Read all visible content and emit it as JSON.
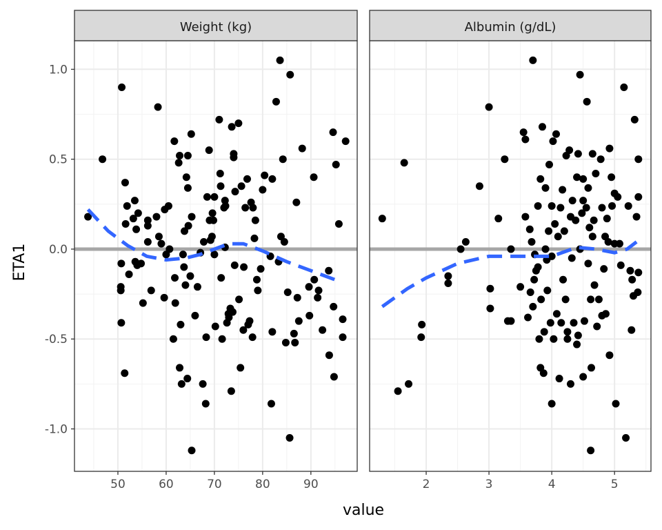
{
  "chart_data": {
    "type": "scatter",
    "ylabel": "ETA1",
    "xlabel": "value",
    "ylim": [
      -1.236,
      1.159
    ],
    "yticks": [
      "-1.0",
      "-0.5",
      "0.0",
      "0.5",
      "1.0"
    ],
    "ytick_values": [
      -1.0,
      -0.5,
      0.0,
      0.5,
      1.0
    ],
    "reference_line": {
      "y": 0,
      "color": "#A6A6A6"
    },
    "smooth_color": "#3366FF",
    "point_color": "#000000",
    "strip_fill": "#D9D9D9",
    "grid": true,
    "panels": [
      {
        "title": "Weight (kg)",
        "xlim": [
          41,
          99.6
        ],
        "xticks": [
          "50",
          "60",
          "70",
          "80",
          "90"
        ],
        "xtick_values": [
          50,
          60,
          70,
          80,
          90
        ],
        "points": [
          [
            43.8,
            0.18
          ],
          [
            46.8,
            0.5
          ],
          [
            50.8,
            0.9
          ],
          [
            58.3,
            0.79
          ],
          [
            50.7,
            -0.08
          ],
          [
            50.6,
            -0.21
          ],
          [
            50.6,
            -0.23
          ],
          [
            50.7,
            -0.41
          ],
          [
            51.4,
            -0.69
          ],
          [
            51.5,
            0.37
          ],
          [
            51.6,
            0.14
          ],
          [
            51.9,
            0.24
          ],
          [
            52.3,
            -0.14
          ],
          [
            53.2,
            0.17
          ],
          [
            53.5,
            0.27
          ],
          [
            53.6,
            -0.07
          ],
          [
            53.8,
            0.11
          ],
          [
            54.2,
            0.2
          ],
          [
            54.0,
            -0.09
          ],
          [
            54.8,
            -0.08
          ],
          [
            55.2,
            -0.3
          ],
          [
            56.2,
            0.13
          ],
          [
            56.2,
            0.16
          ],
          [
            56.2,
            0.04
          ],
          [
            56.9,
            -0.23
          ],
          [
            58.0,
            0.18
          ],
          [
            58.5,
            0.07
          ],
          [
            59.0,
            0.03
          ],
          [
            59.6,
            -0.27
          ],
          [
            59.7,
            0.22
          ],
          [
            60.0,
            -0.03
          ],
          [
            60.5,
            0.24
          ],
          [
            60.7,
            0.0
          ],
          [
            61.5,
            -0.5
          ],
          [
            61.7,
            0.6
          ],
          [
            61.8,
            -0.16
          ],
          [
            61.9,
            -0.3
          ],
          [
            62.6,
            0.48
          ],
          [
            62.8,
            0.52
          ],
          [
            62.8,
            -0.66
          ],
          [
            63.0,
            -0.42
          ],
          [
            63.2,
            -0.75
          ],
          [
            63.5,
            -0.03
          ],
          [
            63.7,
            -0.1
          ],
          [
            63.8,
            0.1
          ],
          [
            64.0,
            -0.2
          ],
          [
            64.2,
            0.4
          ],
          [
            64.4,
            -0.72
          ],
          [
            64.5,
            0.52
          ],
          [
            64.5,
            0.34
          ],
          [
            64.6,
            0.13
          ],
          [
            65.0,
            -0.15
          ],
          [
            65.2,
            0.64
          ],
          [
            65.3,
            0.18
          ],
          [
            65.3,
            -1.12
          ],
          [
            66.0,
            -0.37
          ],
          [
            66.5,
            -0.21
          ],
          [
            67.1,
            -0.02
          ],
          [
            67.6,
            -0.75
          ],
          [
            67.8,
            0.04
          ],
          [
            68.2,
            -0.86
          ],
          [
            68.3,
            -0.49
          ],
          [
            68.5,
            0.29
          ],
          [
            68.9,
            0.55
          ],
          [
            69.0,
            0.16
          ],
          [
            69.2,
            0.05
          ],
          [
            69.5,
            0.07
          ],
          [
            69.6,
            0.2
          ],
          [
            69.8,
            0.16
          ],
          [
            70.0,
            0.29
          ],
          [
            70.0,
            -0.03
          ],
          [
            70.2,
            -0.43
          ],
          [
            71.0,
            0.72
          ],
          [
            71.2,
            0.42
          ],
          [
            71.3,
            0.35
          ],
          [
            71.4,
            -0.16
          ],
          [
            71.6,
            -0.5
          ],
          [
            72.0,
            0.23
          ],
          [
            72.2,
            0.27
          ],
          [
            72.3,
            0.24
          ],
          [
            72.2,
            0.01
          ],
          [
            72.6,
            -0.41
          ],
          [
            72.9,
            -0.36
          ],
          [
            73.0,
            -0.38
          ],
          [
            73.3,
            -0.33
          ],
          [
            73.5,
            -0.79
          ],
          [
            73.6,
            0.68
          ],
          [
            73.8,
            -0.35
          ],
          [
            74.0,
            0.51
          ],
          [
            74.0,
            0.53
          ],
          [
            74.2,
            -0.09
          ],
          [
            74.3,
            0.32
          ],
          [
            75.0,
            0.7
          ],
          [
            75.1,
            -0.28
          ],
          [
            75.4,
            -0.66
          ],
          [
            75.6,
            0.35
          ],
          [
            76.0,
            -0.45
          ],
          [
            76.1,
            -0.1
          ],
          [
            76.4,
            0.23
          ],
          [
            76.8,
            0.39
          ],
          [
            77.0,
            -0.42
          ],
          [
            77.3,
            -0.4
          ],
          [
            77.6,
            0.26
          ],
          [
            77.9,
            -0.49
          ],
          [
            78.0,
            0.23
          ],
          [
            78.3,
            0.06
          ],
          [
            78.5,
            0.16
          ],
          [
            78.8,
            -0.17
          ],
          [
            79.0,
            -0.23
          ],
          [
            79.6,
            -0.11
          ],
          [
            80.0,
            0.33
          ],
          [
            80.4,
            0.41
          ],
          [
            81.6,
            -0.04
          ],
          [
            81.8,
            -0.86
          ],
          [
            82.0,
            -0.46
          ],
          [
            82.0,
            0.39
          ],
          [
            82.8,
            0.82
          ],
          [
            83.3,
            -0.07
          ],
          [
            83.6,
            1.05
          ],
          [
            83.8,
            0.07
          ],
          [
            84.2,
            0.5
          ],
          [
            84.5,
            0.04
          ],
          [
            84.8,
            -0.52
          ],
          [
            85.2,
            -0.24
          ],
          [
            85.6,
            -1.05
          ],
          [
            85.7,
            0.97
          ],
          [
            86.5,
            -0.47
          ],
          [
            86.7,
            -0.52
          ],
          [
            87.0,
            0.26
          ],
          [
            87.2,
            -0.27
          ],
          [
            87.5,
            -0.4
          ],
          [
            88.2,
            0.56
          ],
          [
            89.6,
            -0.21
          ],
          [
            89.7,
            -0.37
          ],
          [
            90.6,
            0.4
          ],
          [
            90.7,
            -0.17
          ],
          [
            91.4,
            -0.27
          ],
          [
            91.6,
            -0.23
          ],
          [
            92.4,
            -0.45
          ],
          [
            93.7,
            -0.12
          ],
          [
            93.8,
            -0.59
          ],
          [
            94.6,
            0.65
          ],
          [
            94.7,
            -0.32
          ],
          [
            94.8,
            -0.71
          ],
          [
            95.2,
            0.47
          ],
          [
            95.8,
            0.14
          ],
          [
            96.6,
            -0.49
          ],
          [
            96.6,
            -0.39
          ],
          [
            97.2,
            0.6
          ]
        ],
        "smooth": [
          [
            43.8,
            0.22
          ],
          [
            48,
            0.1
          ],
          [
            52,
            0.02
          ],
          [
            56,
            -0.04
          ],
          [
            60,
            -0.06
          ],
          [
            64,
            -0.05
          ],
          [
            67,
            -0.03
          ],
          [
            70,
            0.0
          ],
          [
            73,
            0.03
          ],
          [
            76,
            0.03
          ],
          [
            80,
            -0.01
          ],
          [
            85,
            -0.07
          ],
          [
            90,
            -0.12
          ],
          [
            95,
            -0.17
          ]
        ]
      },
      {
        "title": "Albumin (g/dL)",
        "xlim": [
          1.099,
          5.58
        ],
        "xticks": [
          "2",
          "3",
          "4",
          "5"
        ],
        "xtick_values": [
          2,
          3,
          4,
          5
        ],
        "points": [
          [
            1.3,
            0.17
          ],
          [
            1.55,
            -0.79
          ],
          [
            1.65,
            0.48
          ],
          [
            1.72,
            -0.75
          ],
          [
            1.92,
            -0.49
          ],
          [
            1.93,
            -0.42
          ],
          [
            2.35,
            -0.15
          ],
          [
            2.35,
            -0.19
          ],
          [
            2.55,
            0.0
          ],
          [
            2.63,
            0.04
          ],
          [
            2.85,
            0.35
          ],
          [
            3.0,
            0.79
          ],
          [
            3.02,
            -0.22
          ],
          [
            3.02,
            -0.33
          ],
          [
            3.15,
            0.17
          ],
          [
            3.25,
            0.5
          ],
          [
            3.3,
            -0.4
          ],
          [
            3.35,
            0.0
          ],
          [
            3.35,
            -0.4
          ],
          [
            3.5,
            -0.21
          ],
          [
            3.55,
            0.65
          ],
          [
            3.58,
            0.18
          ],
          [
            3.58,
            0.61
          ],
          [
            3.62,
            -0.38
          ],
          [
            3.65,
            0.11
          ],
          [
            3.66,
            -0.24
          ],
          [
            3.68,
            0.04
          ],
          [
            3.7,
            -0.32
          ],
          [
            3.7,
            1.05
          ],
          [
            3.72,
            -0.17
          ],
          [
            3.73,
            -0.03
          ],
          [
            3.75,
            -0.12
          ],
          [
            3.78,
            0.24
          ],
          [
            3.78,
            -0.1
          ],
          [
            3.8,
            -0.5
          ],
          [
            3.82,
            0.39
          ],
          [
            3.82,
            -0.66
          ],
          [
            3.83,
            -0.28
          ],
          [
            3.85,
            0.68
          ],
          [
            3.87,
            -0.69
          ],
          [
            3.88,
            -0.46
          ],
          [
            3.9,
            0.34
          ],
          [
            3.9,
            0.0
          ],
          [
            3.92,
            -0.06
          ],
          [
            3.93,
            -0.23
          ],
          [
            3.95,
            0.1
          ],
          [
            3.96,
            0.47
          ],
          [
            3.98,
            -0.41
          ],
          [
            4.0,
            -0.86
          ],
          [
            4.0,
            0.24
          ],
          [
            4.0,
            -0.04
          ],
          [
            4.02,
            0.6
          ],
          [
            4.03,
            -0.5
          ],
          [
            4.05,
            0.14
          ],
          [
            4.07,
            0.64
          ],
          [
            4.08,
            -0.36
          ],
          [
            4.1,
            0.07
          ],
          [
            4.12,
            -0.72
          ],
          [
            4.14,
            0.23
          ],
          [
            4.15,
            -0.41
          ],
          [
            4.17,
            0.33
          ],
          [
            4.18,
            -0.17
          ],
          [
            4.2,
            0.1
          ],
          [
            4.22,
            -0.28
          ],
          [
            4.23,
            0.52
          ],
          [
            4.25,
            -0.46
          ],
          [
            4.25,
            -0.5
          ],
          [
            4.28,
            0.55
          ],
          [
            4.3,
            -0.75
          ],
          [
            4.3,
            0.18
          ],
          [
            4.32,
            -0.05
          ],
          [
            4.33,
            0.27
          ],
          [
            4.35,
            -0.41
          ],
          [
            4.38,
            0.16
          ],
          [
            4.4,
            -0.53
          ],
          [
            4.4,
            0.4
          ],
          [
            4.42,
            0.53
          ],
          [
            4.42,
            -0.48
          ],
          [
            4.45,
            0.0
          ],
          [
            4.45,
            0.97
          ],
          [
            4.48,
            0.2
          ],
          [
            4.5,
            0.39
          ],
          [
            4.5,
            -0.71
          ],
          [
            4.5,
            0.27
          ],
          [
            4.52,
            -0.4
          ],
          [
            4.55,
            0.23
          ],
          [
            4.56,
            0.82
          ],
          [
            4.58,
            0.34
          ],
          [
            4.58,
            -0.08
          ],
          [
            4.6,
            0.12
          ],
          [
            4.62,
            -1.12
          ],
          [
            4.62,
            -0.28
          ],
          [
            4.63,
            -0.66
          ],
          [
            4.65,
            0.53
          ],
          [
            4.65,
            0.07
          ],
          [
            4.67,
            0.16
          ],
          [
            4.68,
            -0.2
          ],
          [
            4.7,
            0.42
          ],
          [
            4.72,
            -0.43
          ],
          [
            4.75,
            -0.28
          ],
          [
            4.78,
            0.5
          ],
          [
            4.8,
            0.23
          ],
          [
            4.8,
            -0.37
          ],
          [
            4.83,
            -0.11
          ],
          [
            4.85,
            0.07
          ],
          [
            4.86,
            -0.36
          ],
          [
            4.88,
            0.17
          ],
          [
            4.9,
            0.04
          ],
          [
            4.92,
            0.56
          ],
          [
            4.92,
            -0.59
          ],
          [
            4.95,
            0.4
          ],
          [
            4.96,
            0.24
          ],
          [
            5.0,
            0.31
          ],
          [
            5.0,
            0.03
          ],
          [
            5.02,
            -0.86
          ],
          [
            5.05,
            0.29
          ],
          [
            5.08,
            0.03
          ],
          [
            5.1,
            -0.09
          ],
          [
            5.15,
            0.9
          ],
          [
            5.18,
            -1.05
          ],
          [
            5.22,
            0.24
          ],
          [
            5.25,
            -0.12
          ],
          [
            5.27,
            -0.45
          ],
          [
            5.28,
            -0.17
          ],
          [
            5.3,
            -0.26
          ],
          [
            5.32,
            0.72
          ],
          [
            5.35,
            0.18
          ],
          [
            5.37,
            -0.24
          ],
          [
            5.38,
            0.5
          ],
          [
            5.38,
            0.29
          ],
          [
            5.38,
            -0.13
          ]
        ],
        "smooth": [
          [
            1.3,
            -0.32
          ],
          [
            1.7,
            -0.22
          ],
          [
            2.0,
            -0.16
          ],
          [
            2.5,
            -0.08
          ],
          [
            3.0,
            -0.04
          ],
          [
            3.5,
            -0.04
          ],
          [
            4.0,
            -0.04
          ],
          [
            4.4,
            0.01
          ],
          [
            4.7,
            0.0
          ],
          [
            5.0,
            -0.02
          ],
          [
            5.2,
            0.0
          ],
          [
            5.35,
            0.04
          ]
        ]
      }
    ]
  }
}
